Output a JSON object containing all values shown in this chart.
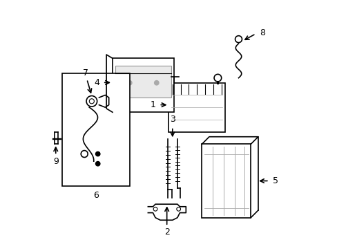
{
  "bg_color": "#ffffff",
  "line_color": "#000000",
  "light_gray": "#cccccc",
  "medium_gray": "#aaaaaa",
  "figsize": [
    4.89,
    3.6
  ],
  "dpi": 100,
  "lw": 1.2
}
